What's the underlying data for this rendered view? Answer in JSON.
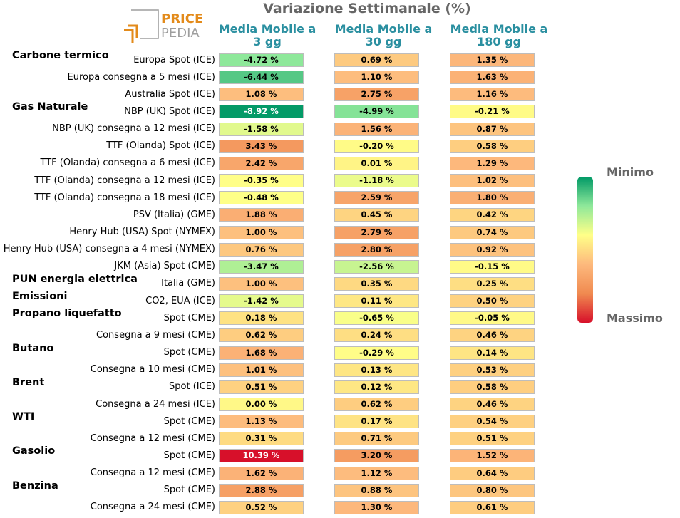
{
  "title": "Variazione Settimanale (%)",
  "logo": {
    "line1": "PRICE",
    "line2": "PEDIA",
    "brand_color": "#e38b1b",
    "grey_color": "#9e9e9e"
  },
  "legend": {
    "min_label": "Minimo",
    "max_label": "Massimo"
  },
  "colors": {
    "scale": [
      "#009966",
      "#8ee89a",
      "#ffff88",
      "#fdb97d",
      "#f08a50",
      "#d7102a"
    ],
    "header": "#2a8fa0"
  },
  "chart_data": {
    "type": "heatmap",
    "title": "Variazione Settimanale (%)",
    "columns": [
      "Media Mobile a 3 gg",
      "Media Mobile a 30 gg",
      "Media Mobile a 180 gg"
    ],
    "column_lines": [
      [
        "Media Mobile a",
        "3 gg"
      ],
      [
        "Media Mobile a",
        "30 gg"
      ],
      [
        "Media Mobile a",
        "180 gg"
      ]
    ],
    "unit": "%",
    "rows": [
      {
        "group": "Carbone termico",
        "label": "Europa Spot (ICE)",
        "values": [
          -4.72,
          0.69,
          1.35
        ]
      },
      {
        "group": "",
        "label": "Europa consegna a 5 mesi (ICE)",
        "values": [
          -6.44,
          1.1,
          1.63
        ]
      },
      {
        "group": "",
        "label": "Australia Spot (ICE)",
        "values": [
          1.08,
          2.75,
          1.16
        ]
      },
      {
        "group": "Gas Naturale",
        "label": "NBP (UK) Spot (ICE)",
        "values": [
          -8.92,
          -4.99,
          -0.21
        ]
      },
      {
        "group": "",
        "label": "NBP (UK) consegna a 12 mesi (ICE)",
        "values": [
          -1.58,
          1.56,
          0.87
        ]
      },
      {
        "group": "",
        "label": "TTF (Olanda) Spot (ICE)",
        "values": [
          3.43,
          -0.2,
          0.58
        ]
      },
      {
        "group": "",
        "label": "TTF (Olanda) consegna a 6 mesi (ICE)",
        "values": [
          2.42,
          0.01,
          1.29
        ]
      },
      {
        "group": "",
        "label": "TTF (Olanda) consegna a 12 mesi (ICE)",
        "values": [
          -0.35,
          -1.18,
          1.02
        ]
      },
      {
        "group": "",
        "label": "TTF (Olanda) consegna a 18 mesi (ICE)",
        "values": [
          -0.48,
          2.59,
          1.8
        ]
      },
      {
        "group": "",
        "label": "PSV (Italia) (GME)",
        "values": [
          1.88,
          0.45,
          0.42
        ]
      },
      {
        "group": "",
        "label": "Henry Hub (USA) Spot (NYMEX)",
        "values": [
          1.0,
          2.79,
          0.74
        ]
      },
      {
        "group": "",
        "label": "Henry Hub (USA) consegna a 4 mesi (NYMEX)",
        "values": [
          0.76,
          2.8,
          0.92
        ]
      },
      {
        "group": "",
        "label": "JKM (Asia) Spot (CME)",
        "values": [
          -3.47,
          -2.56,
          -0.15
        ]
      },
      {
        "group": "PUN energia elettrica",
        "label": "Italia (GME)",
        "values": [
          1.0,
          0.35,
          0.25
        ]
      },
      {
        "group": "Emissioni",
        "label": "CO2, EUA (ICE)",
        "values": [
          -1.42,
          0.11,
          0.5
        ]
      },
      {
        "group": "Propano liquefatto",
        "label": "Spot (CME)",
        "values": [
          0.18,
          -0.65,
          -0.05
        ]
      },
      {
        "group": "",
        "label": "Consegna a 9 mesi (CME)",
        "values": [
          0.62,
          0.24,
          0.46
        ]
      },
      {
        "group": "Butano",
        "label": "Spot (CME)",
        "values": [
          1.68,
          -0.29,
          0.14
        ]
      },
      {
        "group": "",
        "label": "Consegna a 10 mesi (CME)",
        "values": [
          1.01,
          0.13,
          0.53
        ]
      },
      {
        "group": "Brent",
        "label": "Spot (ICE)",
        "values": [
          0.51,
          0.12,
          0.58
        ]
      },
      {
        "group": "",
        "label": "Consegna a 24 mesi (ICE)",
        "values": [
          0.0,
          0.62,
          0.46
        ]
      },
      {
        "group": "WTI",
        "label": "Spot (CME)",
        "values": [
          1.13,
          0.17,
          0.54
        ]
      },
      {
        "group": "",
        "label": "Consegna a 12 mesi (CME)",
        "values": [
          0.31,
          0.71,
          0.51
        ]
      },
      {
        "group": "Gasolio",
        "label": "Spot (CME)",
        "values": [
          10.39,
          3.2,
          1.52
        ]
      },
      {
        "group": "",
        "label": "Consegna a 12 mesi (CME)",
        "values": [
          1.62,
          1.12,
          0.64
        ]
      },
      {
        "group": "Benzina",
        "label": "Spot (CME)",
        "values": [
          2.88,
          0.88,
          0.8
        ]
      },
      {
        "group": "",
        "label": "Consegna a 24 mesi (CME)",
        "values": [
          0.52,
          1.3,
          0.61
        ]
      }
    ]
  }
}
